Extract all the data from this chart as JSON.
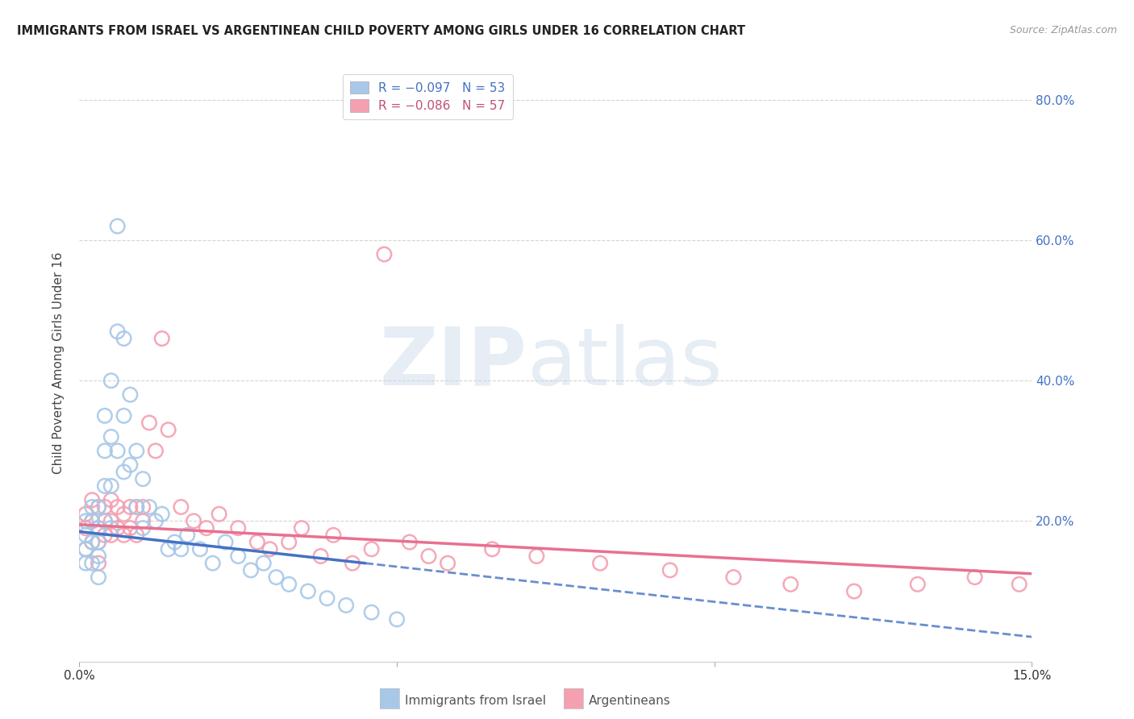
{
  "title": "IMMIGRANTS FROM ISRAEL VS ARGENTINEAN CHILD POVERTY AMONG GIRLS UNDER 16 CORRELATION CHART",
  "source": "Source: ZipAtlas.com",
  "ylabel": "Child Poverty Among Girls Under 16",
  "xlim": [
    0.0,
    0.15
  ],
  "ylim": [
    0.0,
    0.85
  ],
  "yticks": [
    0.2,
    0.4,
    0.6,
    0.8
  ],
  "ytick_labels_right": [
    "20.0%",
    "40.0%",
    "60.0%",
    "80.0%"
  ],
  "xticks": [
    0.0,
    0.05,
    0.1,
    0.15
  ],
  "xtick_labels": [
    "0.0%",
    "",
    "",
    "15.0%"
  ],
  "color_israel": "#a8c8e8",
  "color_argentina": "#f4a0b0",
  "trendline_israel_solid_color": "#4472c4",
  "trendline_israel_dash_color": "#4472c4",
  "trendline_argentina_color": "#e87090",
  "background_color": "#ffffff",
  "grid_color": "#d0d0d0",
  "watermark": "ZIPatlas",
  "israel_x": [
    0.001,
    0.001,
    0.001,
    0.001,
    0.002,
    0.002,
    0.002,
    0.002,
    0.003,
    0.003,
    0.003,
    0.003,
    0.003,
    0.004,
    0.004,
    0.004,
    0.004,
    0.005,
    0.005,
    0.005,
    0.005,
    0.006,
    0.006,
    0.006,
    0.007,
    0.007,
    0.007,
    0.008,
    0.008,
    0.009,
    0.009,
    0.01,
    0.01,
    0.011,
    0.012,
    0.013,
    0.014,
    0.015,
    0.016,
    0.017,
    0.019,
    0.021,
    0.023,
    0.025,
    0.027,
    0.029,
    0.031,
    0.033,
    0.036,
    0.039,
    0.042,
    0.046,
    0.05
  ],
  "israel_y": [
    0.2,
    0.18,
    0.16,
    0.14,
    0.22,
    0.2,
    0.17,
    0.14,
    0.22,
    0.19,
    0.17,
    0.15,
    0.12,
    0.35,
    0.3,
    0.25,
    0.2,
    0.4,
    0.32,
    0.25,
    0.19,
    0.62,
    0.47,
    0.3,
    0.46,
    0.35,
    0.27,
    0.38,
    0.28,
    0.3,
    0.22,
    0.26,
    0.19,
    0.22,
    0.2,
    0.21,
    0.16,
    0.17,
    0.16,
    0.18,
    0.16,
    0.14,
    0.17,
    0.15,
    0.13,
    0.14,
    0.12,
    0.11,
    0.1,
    0.09,
    0.08,
    0.07,
    0.06
  ],
  "argentina_x": [
    0.001,
    0.001,
    0.001,
    0.002,
    0.002,
    0.002,
    0.003,
    0.003,
    0.003,
    0.003,
    0.004,
    0.004,
    0.004,
    0.005,
    0.005,
    0.005,
    0.006,
    0.006,
    0.007,
    0.007,
    0.008,
    0.008,
    0.009,
    0.009,
    0.01,
    0.01,
    0.011,
    0.012,
    0.013,
    0.014,
    0.016,
    0.018,
    0.02,
    0.022,
    0.025,
    0.028,
    0.03,
    0.033,
    0.035,
    0.038,
    0.04,
    0.043,
    0.046,
    0.048,
    0.052,
    0.055,
    0.058,
    0.065,
    0.072,
    0.082,
    0.093,
    0.103,
    0.112,
    0.122,
    0.132,
    0.141,
    0.148
  ],
  "argentina_y": [
    0.21,
    0.19,
    0.16,
    0.23,
    0.2,
    0.17,
    0.22,
    0.19,
    0.17,
    0.14,
    0.22,
    0.2,
    0.18,
    0.23,
    0.2,
    0.18,
    0.22,
    0.19,
    0.21,
    0.18,
    0.22,
    0.19,
    0.22,
    0.18,
    0.22,
    0.2,
    0.34,
    0.3,
    0.46,
    0.33,
    0.22,
    0.2,
    0.19,
    0.21,
    0.19,
    0.17,
    0.16,
    0.17,
    0.19,
    0.15,
    0.18,
    0.14,
    0.16,
    0.58,
    0.17,
    0.15,
    0.14,
    0.16,
    0.15,
    0.14,
    0.13,
    0.12,
    0.11,
    0.1,
    0.11,
    0.12,
    0.11
  ],
  "trend_israel_x0": 0.0,
  "trend_israel_x_solid_end": 0.045,
  "trend_israel_x_end": 0.15,
  "trend_israel_y0": 0.185,
  "trend_israel_y_end": 0.035,
  "trend_arg_x0": 0.0,
  "trend_arg_x_end": 0.15,
  "trend_arg_y0": 0.195,
  "trend_arg_y_end": 0.125
}
